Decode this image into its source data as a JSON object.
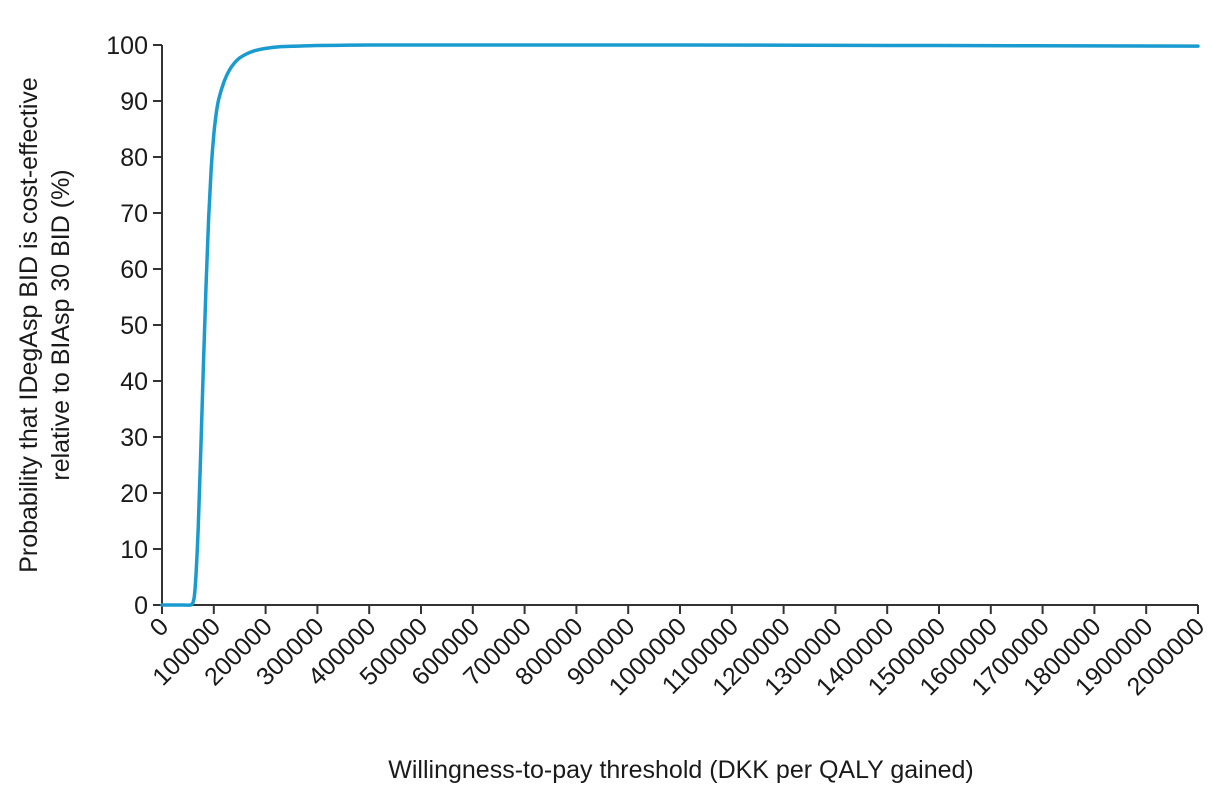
{
  "chart_data": {
    "type": "line",
    "title": "",
    "xlabel": "Willingness-to-pay threshold (DKK per QALY gained)",
    "ylabel_lines": [
      "Probability that IDegAsp BID is cost-effective",
      "relative to BIAsp 30 BID (%)"
    ],
    "xlim": [
      0,
      2000000
    ],
    "ylim": [
      0,
      100
    ],
    "x_ticks": [
      0,
      100000,
      200000,
      300000,
      400000,
      500000,
      600000,
      700000,
      800000,
      900000,
      1000000,
      1100000,
      1200000,
      1300000,
      1400000,
      1500000,
      1600000,
      1700000,
      1800000,
      1900000,
      2000000
    ],
    "x_tick_labels": [
      "0",
      "100000",
      "200000",
      "300000",
      "400000",
      "500000",
      "600000",
      "700000",
      "800000",
      "900000",
      "1000000",
      "1100000",
      "1200000",
      "1300000",
      "1400000",
      "1500000",
      "1600000",
      "1700000",
      "1800000",
      "1900000",
      "2000000"
    ],
    "y_ticks": [
      0,
      10,
      20,
      30,
      40,
      50,
      60,
      70,
      80,
      90,
      100
    ],
    "y_tick_labels": [
      "0",
      "10",
      "20",
      "30",
      "40",
      "50",
      "60",
      "70",
      "80",
      "90",
      "100"
    ],
    "grid": false,
    "legend": "none",
    "series": [
      {
        "color": "#1a9bd0",
        "x": [
          0,
          40000,
          55000,
          60000,
          63000,
          66000,
          70000,
          75000,
          80000,
          85000,
          90000,
          95000,
          100000,
          105000,
          110000,
          120000,
          130000,
          140000,
          150000,
          165000,
          180000,
          200000,
          230000,
          260000,
          300000,
          350000,
          400000,
          600000,
          1000000,
          1500000,
          2000000
        ],
        "y": [
          0,
          0,
          0,
          0.5,
          2,
          6,
          14,
          28,
          43,
          57,
          69,
          78,
          84,
          88,
          90.5,
          93.5,
          95.5,
          96.8,
          97.7,
          98.5,
          99.0,
          99.4,
          99.7,
          99.8,
          99.9,
          99.95,
          100,
          100,
          100,
          99.9,
          99.8
        ]
      }
    ]
  }
}
